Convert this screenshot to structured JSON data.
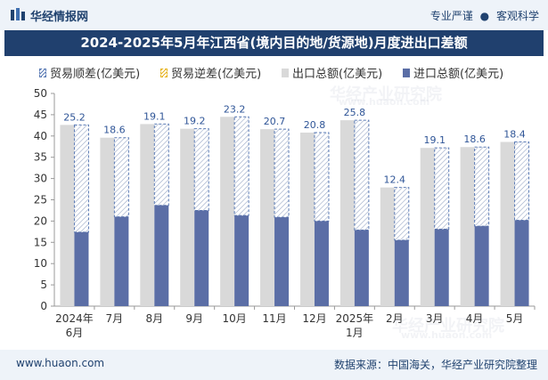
{
  "header": {
    "site_name": "华经情报网",
    "tag1": "专业严谨",
    "tag2": "客观科学",
    "dot": "●"
  },
  "watermark": {
    "text_cn": "华经产业研究院",
    "text_en": "www.huaon.com"
  },
  "footer": {
    "url": "www.huaon.com",
    "source": "数据来源：中国海关，华经产业研究院整理"
  },
  "chart_data": {
    "type": "bar",
    "title": "2024-2025年5月年江西省(境内目的地/货源地)月度进出口差额",
    "categories": [
      [
        "2024年",
        "6月"
      ],
      [
        "7月"
      ],
      [
        "8月"
      ],
      [
        "9月"
      ],
      [
        "10月"
      ],
      [
        "11月"
      ],
      [
        "12月"
      ],
      [
        "2025年",
        "1月"
      ],
      [
        "2月"
      ],
      [
        "3月"
      ],
      [
        "4月"
      ],
      [
        "5月"
      ]
    ],
    "legend": [
      {
        "name": "贸易顺差(亿美元)",
        "color": "#5b7bb5",
        "style": "hatched"
      },
      {
        "name": "贸易逆差(亿美元)",
        "color": "#e6b422",
        "style": "hatched"
      },
      {
        "name": "出口总额(亿美元)",
        "color": "#d9d9d9",
        "style": "solid"
      },
      {
        "name": "进口总额(亿美元)",
        "color": "#5b6ea6",
        "style": "solid"
      }
    ],
    "series": [
      {
        "name": "出口总额(亿美元)",
        "values": [
          42.6,
          39.6,
          42.8,
          41.7,
          44.5,
          41.6,
          40.8,
          43.7,
          27.9,
          37.2,
          37.4,
          38.6
        ]
      },
      {
        "name": "进口总额(亿美元)",
        "values": [
          17.4,
          21.0,
          23.7,
          22.5,
          21.3,
          20.9,
          20.0,
          17.9,
          15.5,
          18.1,
          18.8,
          20.2
        ]
      },
      {
        "name": "贸易顺差(亿美元)",
        "values": [
          25.2,
          18.6,
          19.1,
          19.2,
          23.2,
          20.7,
          20.8,
          25.8,
          12.4,
          19.1,
          18.6,
          18.4
        ]
      }
    ],
    "ylim": [
      0,
      50
    ],
    "yticks": [
      0,
      5,
      10,
      15,
      20,
      25,
      30,
      35,
      40,
      45,
      50
    ],
    "colors": {
      "export": "#d9d9d9",
      "import": "#5b6ea6",
      "surplus_line": "#5b7bb5",
      "label": "#2f5597",
      "axis": "#999999"
    }
  }
}
